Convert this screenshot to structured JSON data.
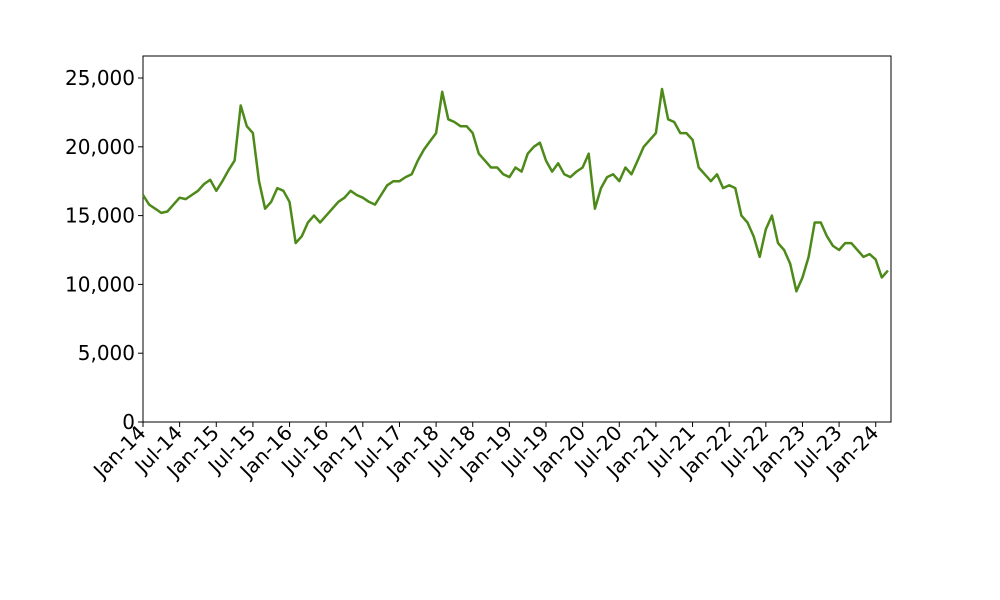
{
  "chart_data": {
    "type": "line",
    "x": [
      "2014-01",
      "2014-02",
      "2014-03",
      "2014-04",
      "2014-05",
      "2014-06",
      "2014-07",
      "2014-08",
      "2014-09",
      "2014-10",
      "2014-11",
      "2014-12",
      "2015-01",
      "2015-02",
      "2015-03",
      "2015-04",
      "2015-05",
      "2015-06",
      "2015-07",
      "2015-08",
      "2015-09",
      "2015-10",
      "2015-11",
      "2015-12",
      "2016-01",
      "2016-02",
      "2016-03",
      "2016-04",
      "2016-05",
      "2016-06",
      "2016-07",
      "2016-08",
      "2016-09",
      "2016-10",
      "2016-11",
      "2016-12",
      "2017-01",
      "2017-02",
      "2017-03",
      "2017-04",
      "2017-05",
      "2017-06",
      "2017-07",
      "2017-08",
      "2017-09",
      "2017-10",
      "2017-11",
      "2017-12",
      "2018-01",
      "2018-02",
      "2018-03",
      "2018-04",
      "2018-05",
      "2018-06",
      "2018-07",
      "2018-08",
      "2018-09",
      "2018-10",
      "2018-11",
      "2018-12",
      "2019-01",
      "2019-02",
      "2019-03",
      "2019-04",
      "2019-05",
      "2019-06",
      "2019-07",
      "2019-08",
      "2019-09",
      "2019-10",
      "2019-11",
      "2019-12",
      "2020-01",
      "2020-02",
      "2020-03",
      "2020-04",
      "2020-05",
      "2020-06",
      "2020-07",
      "2020-08",
      "2020-09",
      "2020-10",
      "2020-11",
      "2020-12",
      "2021-01",
      "2021-02",
      "2021-03",
      "2021-04",
      "2021-05",
      "2021-06",
      "2021-07",
      "2021-08",
      "2021-09",
      "2021-10",
      "2021-11",
      "2021-12",
      "2022-01",
      "2022-02",
      "2022-03",
      "2022-04",
      "2022-05",
      "2022-06",
      "2022-07",
      "2022-08",
      "2022-09",
      "2022-10",
      "2022-11",
      "2022-12",
      "2023-01",
      "2023-02",
      "2023-03",
      "2023-04",
      "2023-05",
      "2023-06",
      "2023-07",
      "2023-08",
      "2023-09",
      "2023-10",
      "2023-11",
      "2023-12",
      "2024-01",
      "2024-02",
      "2024-03"
    ],
    "series": [
      {
        "color": "#4d8a19",
        "values": [
          16500,
          15800,
          15500,
          15200,
          15300,
          15800,
          16300,
          16200,
          16500,
          16800,
          17300,
          17600,
          16800,
          17500,
          18300,
          19000,
          23000,
          21500,
          21000,
          17500,
          15500,
          16000,
          17000,
          16800,
          16000,
          13000,
          13500,
          14500,
          15000,
          14500,
          15000,
          15500,
          16000,
          16300,
          16800,
          16500,
          16300,
          16000,
          15800,
          16500,
          17200,
          17500,
          17500,
          17800,
          18000,
          19000,
          19800,
          20400,
          21000,
          24000,
          22000,
          21800,
          21500,
          21500,
          21000,
          19500,
          19000,
          18500,
          18500,
          18000,
          17800,
          18500,
          18200,
          19500,
          20000,
          20300,
          19000,
          18200,
          18800,
          18000,
          17800,
          18200,
          18500,
          19500,
          15500,
          17000,
          17800,
          18000,
          17500,
          18500,
          18000,
          19000,
          20000,
          20500,
          21000,
          24200,
          22000,
          21800,
          21000,
          21000,
          20500,
          18500,
          18000,
          17500,
          18000,
          17000,
          17200,
          17000,
          15000,
          14500,
          13500,
          12000,
          14000,
          15000,
          13000,
          12500,
          11500,
          9500,
          10500,
          12000,
          14500,
          14500,
          13500,
          12800,
          12500,
          13000,
          13000,
          12500,
          12000,
          12200,
          11800,
          10500,
          11000
        ]
      }
    ],
    "xlim": [
      "2014-01",
      "2024-03"
    ],
    "xticks": [
      {
        "value": "2014-01",
        "label": "Jan-14"
      },
      {
        "value": "2014-07",
        "label": "Jul-14"
      },
      {
        "value": "2015-01",
        "label": "Jan-15"
      },
      {
        "value": "2015-07",
        "label": "Jul-15"
      },
      {
        "value": "2016-01",
        "label": "Jan-16"
      },
      {
        "value": "2016-07",
        "label": "Jul-16"
      },
      {
        "value": "2017-01",
        "label": "Jan-17"
      },
      {
        "value": "2017-07",
        "label": "Jul-17"
      },
      {
        "value": "2018-01",
        "label": "Jan-18"
      },
      {
        "value": "2018-07",
        "label": "Jul-18"
      },
      {
        "value": "2019-01",
        "label": "Jan-19"
      },
      {
        "value": "2019-07",
        "label": "Jul-19"
      },
      {
        "value": "2020-01",
        "label": "Jan-20"
      },
      {
        "value": "2020-07",
        "label": "Jul-20"
      },
      {
        "value": "2021-01",
        "label": "Jan-21"
      },
      {
        "value": "2021-07",
        "label": "Jul-21"
      },
      {
        "value": "2022-01",
        "label": "Jan-22"
      },
      {
        "value": "2022-07",
        "label": "Jul-22"
      },
      {
        "value": "2023-01",
        "label": "Jan-23"
      },
      {
        "value": "2023-07",
        "label": "Jul-23"
      },
      {
        "value": "2024-01",
        "label": "Jan-24"
      }
    ],
    "ylim": [
      0,
      26600
    ],
    "yticks": [
      0,
      {
        "value": 5000,
        "label": "5,000"
      },
      {
        "value": 10000,
        "label": "10,000"
      },
      {
        "value": 15000,
        "label": "15,000"
      },
      {
        "value": 20000,
        "label": "20,000"
      },
      {
        "value": 25000,
        "label": "25,000"
      }
    ],
    "grid": false
  }
}
